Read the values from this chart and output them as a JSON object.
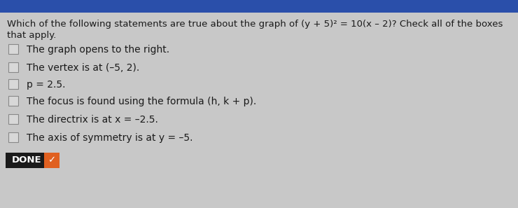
{
  "title_line1": "Which of the following statements are true about the graph of (y + 5)² = 10(x – 2)? Check all of the boxes",
  "title_line2": "that apply.",
  "options": [
    "The graph opens to the right.",
    "The vertex is at (–5, 2).",
    "p = 2.5.",
    "The focus is found using the formula (h, k + p).",
    "The directrix is at x = –2.5.",
    "The axis of symmetry is at y = –5."
  ],
  "done_label": "DONE",
  "background_color": "#c8c8c8",
  "top_bar_color": "#2a4faa",
  "done_bg_color": "#1a1a1a",
  "done_text_color": "#ffffff",
  "done_check_color": "#e06020",
  "text_color": "#1a1a1a",
  "checkbox_fill": "#d8d8d8",
  "checkbox_edge_color": "#888888",
  "title_fontsize": 9.5,
  "option_fontsize": 10.0,
  "done_fontsize": 9.5
}
